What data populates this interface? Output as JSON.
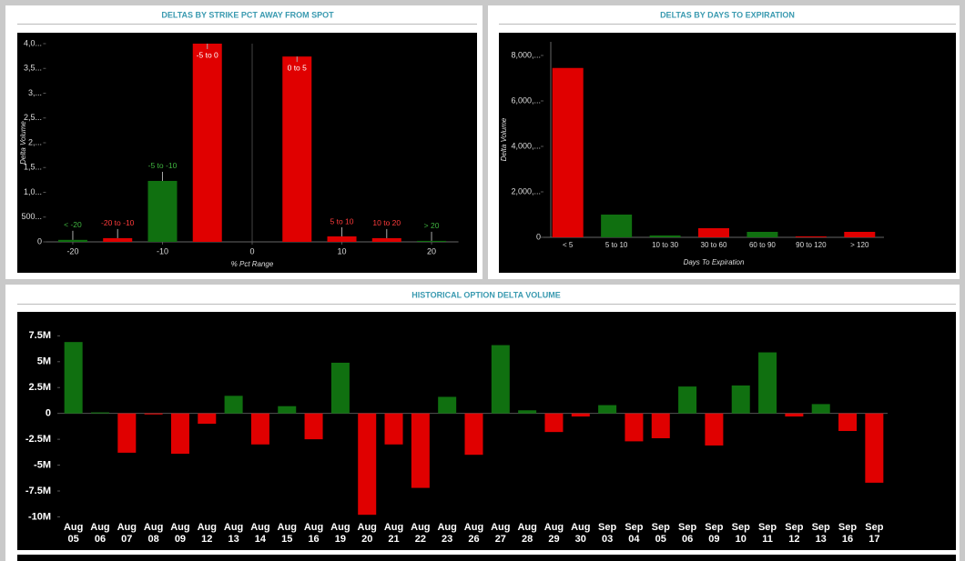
{
  "chart_data": [
    {
      "type": "bar",
      "title": "DELTAS BY STRIKE PCT AWAY FROM SPOT",
      "xlabel": "% Pct Range",
      "ylabel": "Delta Volume",
      "x": [
        -20,
        -15,
        -10,
        -5,
        5,
        10,
        15,
        20
      ],
      "labels": [
        "< -20",
        "-20 to -10",
        "-5 to -10",
        "-5 to 0",
        "0 to 5",
        "5 to 10",
        "10 to 20",
        "> 20"
      ],
      "values": [
        40,
        75,
        1230,
        4000,
        3740,
        110,
        75,
        20
      ],
      "colors": [
        "#107010",
        "#e00000",
        "#107010",
        "#e00000",
        "#e00000",
        "#e00000",
        "#e00000",
        "#107010"
      ],
      "xlim": [
        -23,
        23
      ],
      "xticks": [
        -20,
        -10,
        0,
        10,
        20
      ],
      "ylim": [
        0,
        4000
      ],
      "yticks": [
        0,
        {
          "value": 500,
          "label": "500..."
        },
        {
          "value": 1000,
          "label": "1,0..."
        },
        {
          "value": 1500,
          "label": "1,5..."
        },
        {
          "value": 2000,
          "label": "2,..."
        },
        {
          "value": 2500,
          "label": "2,5..."
        },
        {
          "value": 3000,
          "label": "3,..."
        },
        {
          "value": 3500,
          "label": "3,5..."
        },
        {
          "value": 4000,
          "label": "4,0..."
        }
      ]
    },
    {
      "type": "bar",
      "title": "DELTAS BY DAYS TO EXPIRATION",
      "xlabel": "Days To Expiration",
      "ylabel": "Delta Volume",
      "categories": [
        "< 5",
        "5 to 10",
        "10 to 30",
        "30 to 60",
        "60 to 90",
        "90 to 120",
        "> 120"
      ],
      "values": [
        7450,
        1000,
        80,
        400,
        240,
        40,
        240
      ],
      "colors": [
        "#e00000",
        "#107010",
        "#107010",
        "#e00000",
        "#107010",
        "#e00000",
        "#e00000"
      ],
      "ylim": [
        0,
        8600
      ],
      "yticks": [
        0,
        {
          "value": 2000,
          "label": "2,000,..."
        },
        {
          "value": 4000,
          "label": "4,000,..."
        },
        {
          "value": 6000,
          "label": "6,000,..."
        },
        {
          "value": 8000,
          "label": "8,000,..."
        }
      ]
    },
    {
      "type": "bar",
      "title": "HISTORICAL OPTION DELTA VOLUME",
      "categories": [
        "Aug 05",
        "Aug 06",
        "Aug 07",
        "Aug 08",
        "Aug 09",
        "Aug 12",
        "Aug 13",
        "Aug 14",
        "Aug 15",
        "Aug 16",
        "Aug 19",
        "Aug 20",
        "Aug 21",
        "Aug 22",
        "Aug 23",
        "Aug 26",
        "Aug 27",
        "Aug 28",
        "Aug 29",
        "Aug 30",
        "Sep 03",
        "Sep 04",
        "Sep 05",
        "Sep 06",
        "Sep 09",
        "Sep 10",
        "Sep 11",
        "Sep 12",
        "Sep 13",
        "Sep 16",
        "Sep 17"
      ],
      "values": [
        6900000,
        100000,
        -3800000,
        -100000,
        -3900000,
        -1000000,
        1700000,
        -3000000,
        700000,
        -2500000,
        4900000,
        -9800000,
        -3000000,
        -7200000,
        1600000,
        -4000000,
        6600000,
        300000,
        -1800000,
        -300000,
        800000,
        -2700000,
        -2400000,
        2600000,
        -3100000,
        2700000,
        5900000,
        -300000,
        900000,
        -1700000,
        -6700000
      ],
      "positive_color": "#107010",
      "negative_color": "#e00000",
      "ylim": [
        -10400000,
        9200000
      ],
      "yticks": [
        {
          "value": -10000000,
          "label": "-10M"
        },
        {
          "value": -7500000,
          "label": "-7.5M"
        },
        {
          "value": -5000000,
          "label": "-5M"
        },
        {
          "value": -2500000,
          "label": "-2.5M"
        },
        0,
        {
          "value": 2500000,
          "label": "2.5M"
        },
        {
          "value": 5000000,
          "label": "5M"
        },
        {
          "value": 7500000,
          "label": "7.5M"
        }
      ]
    }
  ]
}
